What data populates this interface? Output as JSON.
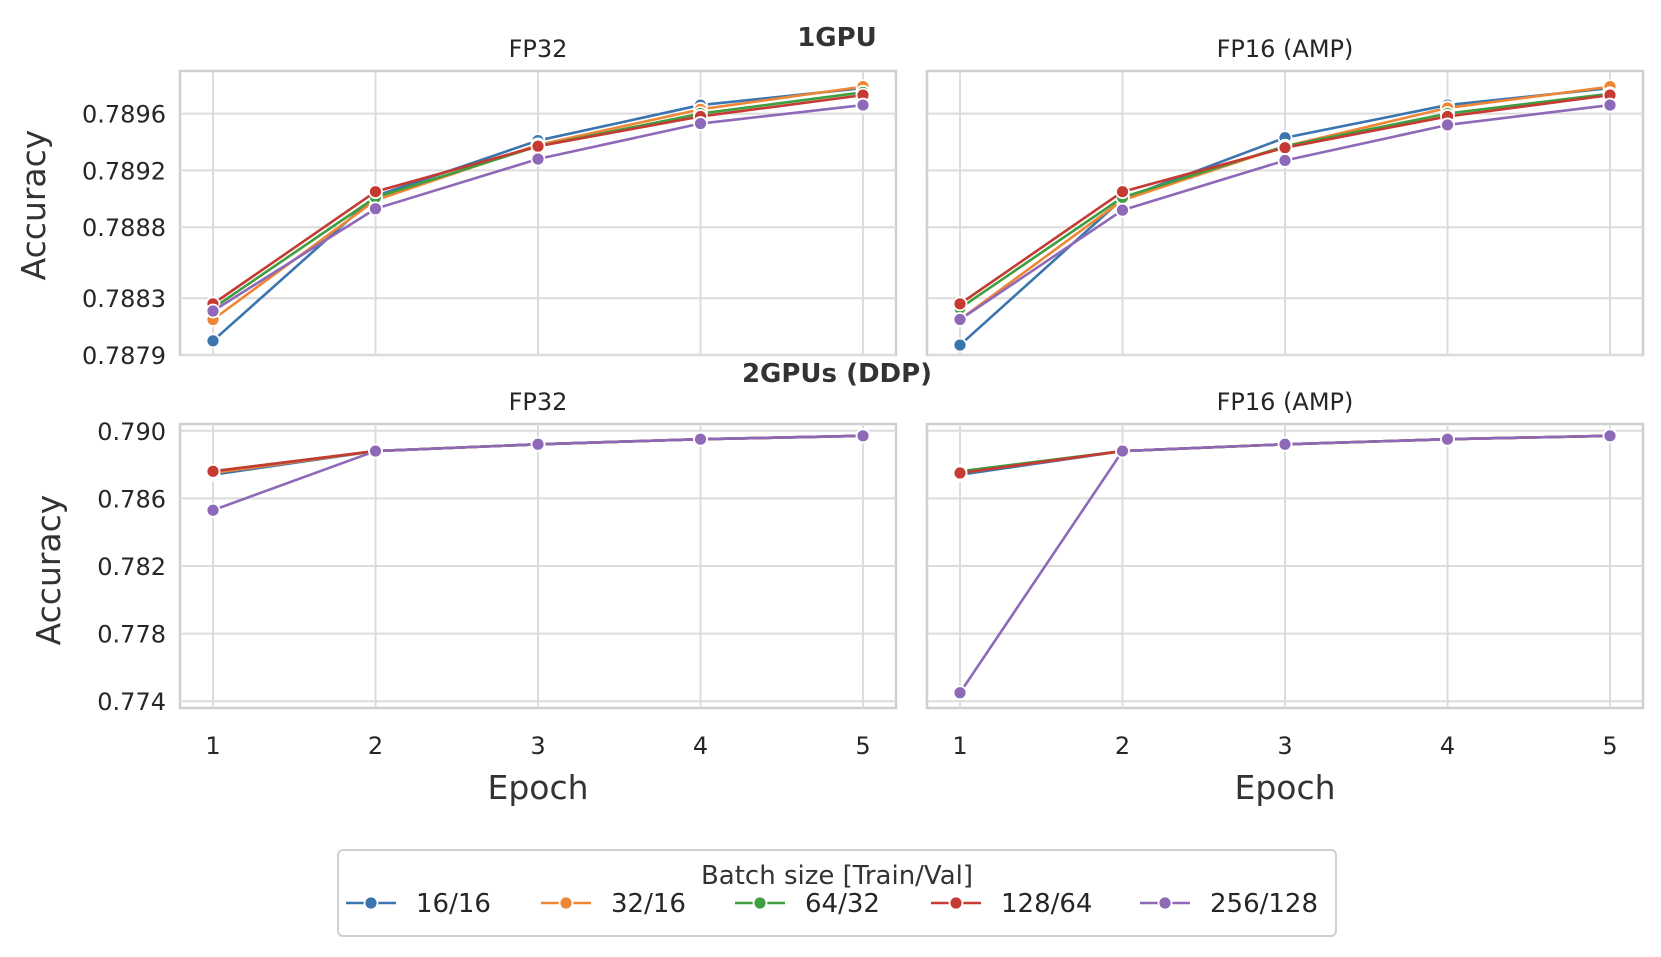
{
  "chart_data": {
    "type": "line",
    "figure": {
      "row_titles": [
        "1GPU",
        "2GPUs (DDP)"
      ],
      "legend_title": "Batch size [Train/Val]",
      "x_axis_label": "Epoch",
      "y_axis_label": "Accuracy",
      "legend_placement": "bottom-center"
    },
    "series_meta": [
      {
        "name": "16/16",
        "color": "#3b75af"
      },
      {
        "name": "32/16",
        "color": "#ef8636"
      },
      {
        "name": "64/32",
        "color": "#3f9e3f"
      },
      {
        "name": "128/64",
        "color": "#c53a32"
      },
      {
        "name": "256/128",
        "color": "#8d69b8"
      }
    ],
    "panels": [
      {
        "title": "FP32",
        "row": 0,
        "col": 0,
        "x": [
          1,
          2,
          3,
          4,
          5
        ],
        "ylim": [
          0.7879,
          0.7899
        ],
        "yticks": [
          0.7879,
          0.7883,
          0.7888,
          0.7892,
          0.7896
        ],
        "ytick_labels": [
          "0.7879",
          "0.7883",
          "0.7888",
          "0.7892",
          "0.7896"
        ],
        "series": [
          {
            "name": "16/16",
            "values": [
              0.788,
              0.78902,
              0.78941,
              0.78966,
              0.78978
            ]
          },
          {
            "name": "32/16",
            "values": [
              0.78815,
              0.78899,
              0.78938,
              0.78963,
              0.78979
            ]
          },
          {
            "name": "64/32",
            "values": [
              0.78823,
              0.78901,
              0.78937,
              0.7896,
              0.78975
            ]
          },
          {
            "name": "128/64",
            "values": [
              0.78826,
              0.78905,
              0.78937,
              0.78958,
              0.78973
            ]
          },
          {
            "name": "256/128",
            "values": [
              0.78821,
              0.78893,
              0.78928,
              0.78953,
              0.78966
            ]
          }
        ]
      },
      {
        "title": "FP16 (AMP)",
        "row": 0,
        "col": 1,
        "x": [
          1,
          2,
          3,
          4,
          5
        ],
        "ylim": [
          0.7879,
          0.7899
        ],
        "yticks": [
          0.7879,
          0.7883,
          0.7888,
          0.7892,
          0.7896
        ],
        "ytick_labels": [],
        "series": [
          {
            "name": "16/16",
            "values": [
              0.78797,
              0.789,
              0.78943,
              0.78966,
              0.78978
            ]
          },
          {
            "name": "32/16",
            "values": [
              0.78815,
              0.78899,
              0.78937,
              0.78964,
              0.78979
            ]
          },
          {
            "name": "64/32",
            "values": [
              0.78823,
              0.78901,
              0.78937,
              0.7896,
              0.78974
            ]
          },
          {
            "name": "128/64",
            "values": [
              0.78826,
              0.78905,
              0.78936,
              0.78958,
              0.78973
            ]
          },
          {
            "name": "256/128",
            "values": [
              0.78815,
              0.78892,
              0.78927,
              0.78952,
              0.78966
            ]
          }
        ]
      },
      {
        "title": "FP32",
        "row": 1,
        "col": 0,
        "x": [
          1,
          2,
          3,
          4,
          5
        ],
        "ylim": [
          0.7736,
          0.7904
        ],
        "yticks": [
          0.774,
          0.778,
          0.782,
          0.786,
          0.79
        ],
        "ytick_labels": [
          "0.774",
          "0.778",
          "0.782",
          "0.786",
          "0.790"
        ],
        "series": [
          {
            "name": "16/16",
            "values": [
              0.7874,
              0.7888,
              0.7892,
              0.7895,
              0.7897
            ]
          },
          {
            "name": "32/16",
            "values": [
              0.7875,
              0.7888,
              0.7892,
              0.7895,
              0.7897
            ]
          },
          {
            "name": "64/32",
            "values": [
              0.7876,
              0.7888,
              0.7892,
              0.7895,
              0.7897
            ]
          },
          {
            "name": "128/64",
            "values": [
              0.7876,
              0.7888,
              0.7892,
              0.7895,
              0.7897
            ]
          },
          {
            "name": "256/128",
            "values": [
              0.7853,
              0.7888,
              0.7892,
              0.7895,
              0.7897
            ]
          }
        ]
      },
      {
        "title": "FP16 (AMP)",
        "row": 1,
        "col": 1,
        "x": [
          1,
          2,
          3,
          4,
          5
        ],
        "ylim": [
          0.7736,
          0.7904
        ],
        "yticks": [
          0.774,
          0.778,
          0.782,
          0.786,
          0.79
        ],
        "ytick_labels": [],
        "series": [
          {
            "name": "16/16",
            "values": [
              0.7874,
              0.7888,
              0.7892,
              0.7895,
              0.7897
            ]
          },
          {
            "name": "32/16",
            "values": [
              0.7875,
              0.7888,
              0.7892,
              0.7895,
              0.7897
            ]
          },
          {
            "name": "64/32",
            "values": [
              0.7876,
              0.7888,
              0.7892,
              0.7895,
              0.7897
            ]
          },
          {
            "name": "128/64",
            "values": [
              0.7875,
              0.7888,
              0.7892,
              0.7895,
              0.7897
            ]
          },
          {
            "name": "256/128",
            "values": [
              0.7745,
              0.7888,
              0.7892,
              0.7895,
              0.7897
            ]
          }
        ]
      }
    ]
  }
}
